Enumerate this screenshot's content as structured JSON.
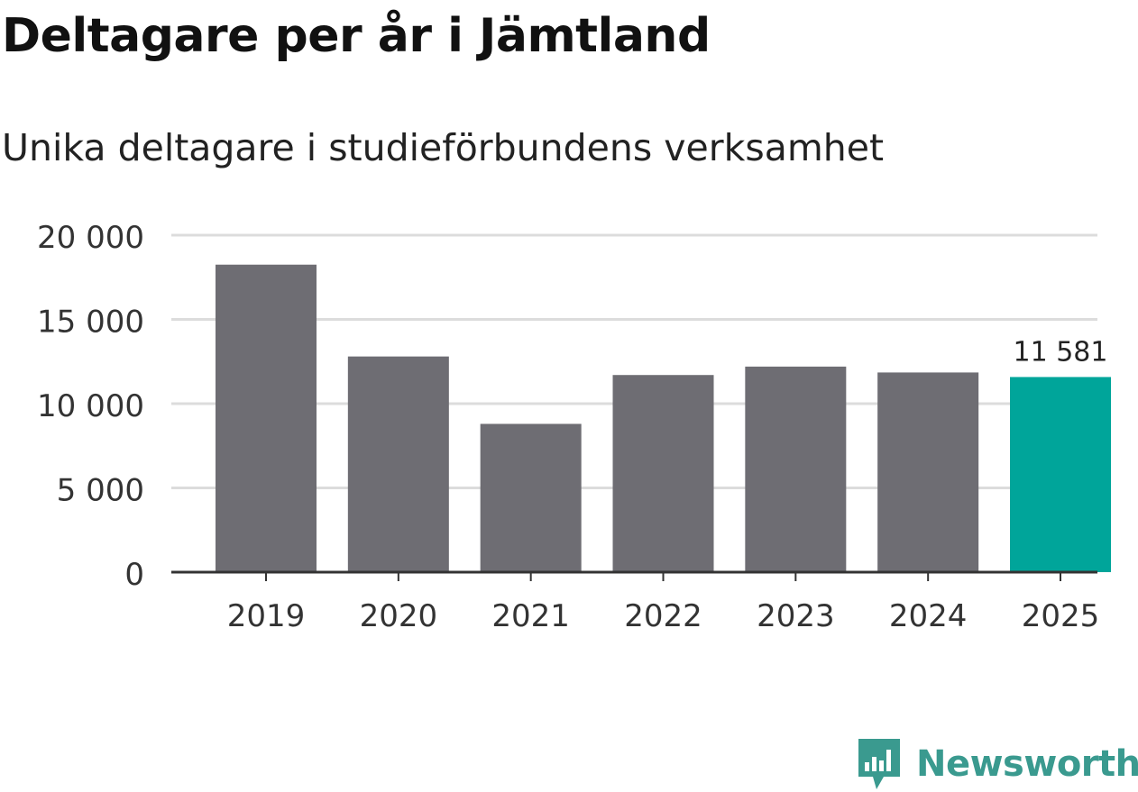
{
  "title": "Deltagare per år i Jämtland",
  "subtitle": "Unika deltagare i studieförbundens verksamhet",
  "brand": {
    "name": "Newsworthy",
    "icon": "newsworthy-logo-icon",
    "color": "#3a9a8f"
  },
  "chart_data": {
    "type": "bar",
    "title": "Deltagare per år i Jämtland",
    "subtitle": "Unika deltagare i studieförbundens verksamhet",
    "categories": [
      "2019",
      "2020",
      "2021",
      "2022",
      "2023",
      "2024",
      "2025"
    ],
    "values": [
      18250,
      12800,
      8800,
      11700,
      12200,
      11850,
      11581
    ],
    "ylim": [
      0,
      20000
    ],
    "yticks": [
      0,
      5000,
      10000,
      15000,
      20000
    ],
    "ytick_labels": [
      "0",
      "5 000",
      "10 000",
      "15 000",
      "20 000"
    ],
    "xlabel": "",
    "ylabel": "",
    "grid": true,
    "bar_color": "#6e6d73",
    "highlight_index": 6,
    "highlight_color": "#00a59a",
    "data_labels": [
      {
        "index": 6,
        "text": "11 581"
      }
    ]
  }
}
